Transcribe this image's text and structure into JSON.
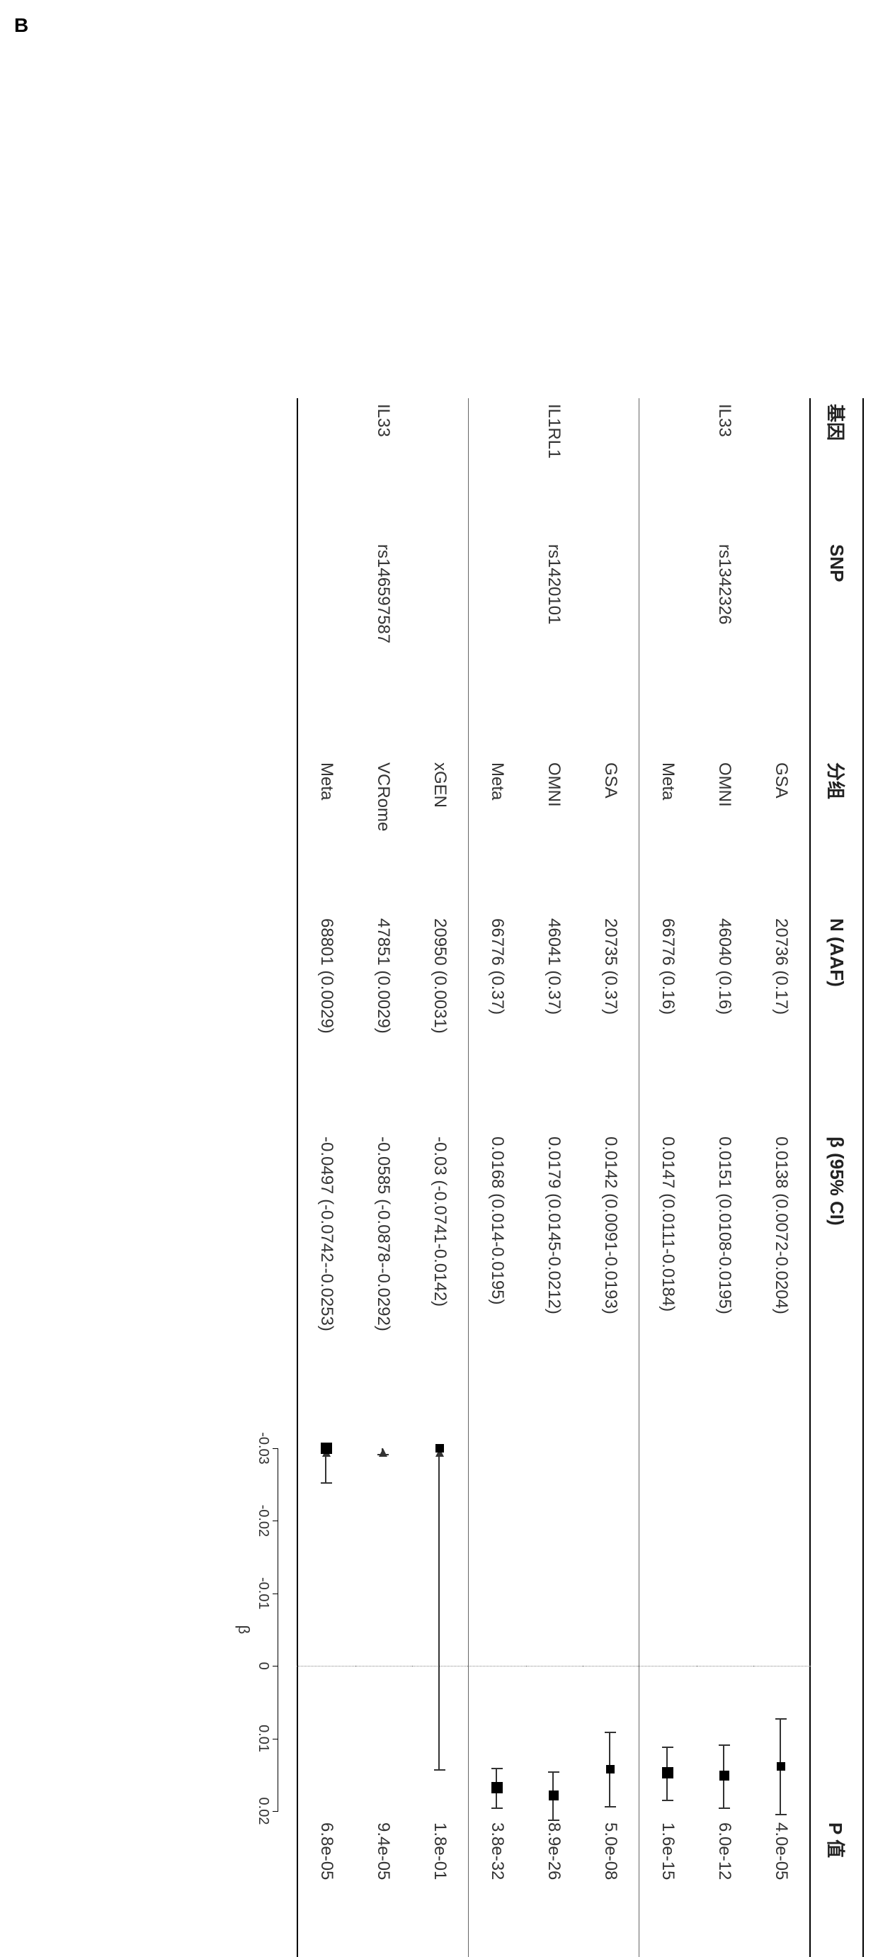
{
  "panel_label": "B",
  "columns": {
    "gene": "基因",
    "snp": "SNP",
    "cohort": "分组",
    "n_aaf": "N (AAF)",
    "beta_ci": "β (95% CI)",
    "pvalue": "P 值"
  },
  "plot": {
    "type": "forest",
    "xmin": -0.03,
    "xmax": 0.02,
    "xticks": [
      -0.03,
      -0.02,
      -0.01,
      0,
      0.01,
      0.02
    ],
    "xtick_labels": [
      "-0.03",
      "-0.02",
      "-0.01",
      "0",
      "0.01",
      "0.02"
    ],
    "axis_title": "β",
    "zero_line_color": "#888888",
    "line_color": "#333333",
    "marker_color": "#000000",
    "background": "#ffffff",
    "text_color": "#333333",
    "header_fontsize": 26,
    "cell_fontsize": 24,
    "axis_fontsize": 20
  },
  "groups": [
    {
      "gene": "IL33",
      "snp": "rs1342326",
      "rows": [
        {
          "cohort": "GSA",
          "n_aaf": "20736 (0.17)",
          "beta_ci": "0.0138 (0.0072-0.0204)",
          "beta": 0.0138,
          "lo": 0.0072,
          "hi": 0.0204,
          "sq": 12,
          "arrow": false,
          "pvalue": "4.0e-05"
        },
        {
          "cohort": "OMNI",
          "n_aaf": "46040 (0.16)",
          "beta_ci": "0.0151 (0.0108-0.0195)",
          "beta": 0.0151,
          "lo": 0.0108,
          "hi": 0.0195,
          "sq": 14,
          "arrow": false,
          "pvalue": "6.0e-12"
        },
        {
          "cohort": "Meta",
          "n_aaf": "66776 (0.16)",
          "beta_ci": "0.0147 (0.0111-0.0184)",
          "beta": 0.0147,
          "lo": 0.0111,
          "hi": 0.0184,
          "sq": 16,
          "arrow": false,
          "pvalue": "1.6e-15"
        }
      ]
    },
    {
      "gene": "IL1RL1",
      "snp": "rs1420101",
      "rows": [
        {
          "cohort": "GSA",
          "n_aaf": "20735 (0.37)",
          "beta_ci": "0.0142 (0.0091-0.0193)",
          "beta": 0.0142,
          "lo": 0.0091,
          "hi": 0.0193,
          "sq": 12,
          "arrow": false,
          "pvalue": "5.0e-08"
        },
        {
          "cohort": "OMNI",
          "n_aaf": "46041 (0.37)",
          "beta_ci": "0.0179 (0.0145-0.0212)",
          "beta": 0.0179,
          "lo": 0.0145,
          "hi": 0.0212,
          "sq": 14,
          "arrow": false,
          "pvalue": "8.9e-26"
        },
        {
          "cohort": "Meta",
          "n_aaf": "66776 (0.37)",
          "beta_ci": "0.0168 (0.014-0.0195)",
          "beta": 0.0168,
          "lo": 0.014,
          "hi": 0.0195,
          "sq": 16,
          "arrow": false,
          "pvalue": "3.8e-32"
        }
      ]
    },
    {
      "gene": "IL33",
      "snp": "rs146597587",
      "rows": [
        {
          "cohort": "xGEN",
          "n_aaf": "20950 (0.0031)",
          "beta_ci": "-0.03 (-0.0741-0.0142)",
          "beta": -0.03,
          "lo": -0.0741,
          "hi": 0.0142,
          "sq": 12,
          "arrow": true,
          "pvalue": "1.8e-01"
        },
        {
          "cohort": "VCRome",
          "n_aaf": "47851 (0.0029)",
          "beta_ci": "-0.0585 (-0.0878--0.0292)",
          "beta": -0.0585,
          "lo": -0.0878,
          "hi": -0.0292,
          "sq": 0,
          "arrow": true,
          "pvalue": "9.4e-05"
        },
        {
          "cohort": "Meta",
          "n_aaf": "68801 (0.0029)",
          "beta_ci": "-0.0497 (-0.0742--0.0253)",
          "beta": -0.0497,
          "lo": -0.0742,
          "hi": -0.0253,
          "sq": 16,
          "arrow": true,
          "pvalue": "6.8e-05"
        }
      ]
    }
  ]
}
